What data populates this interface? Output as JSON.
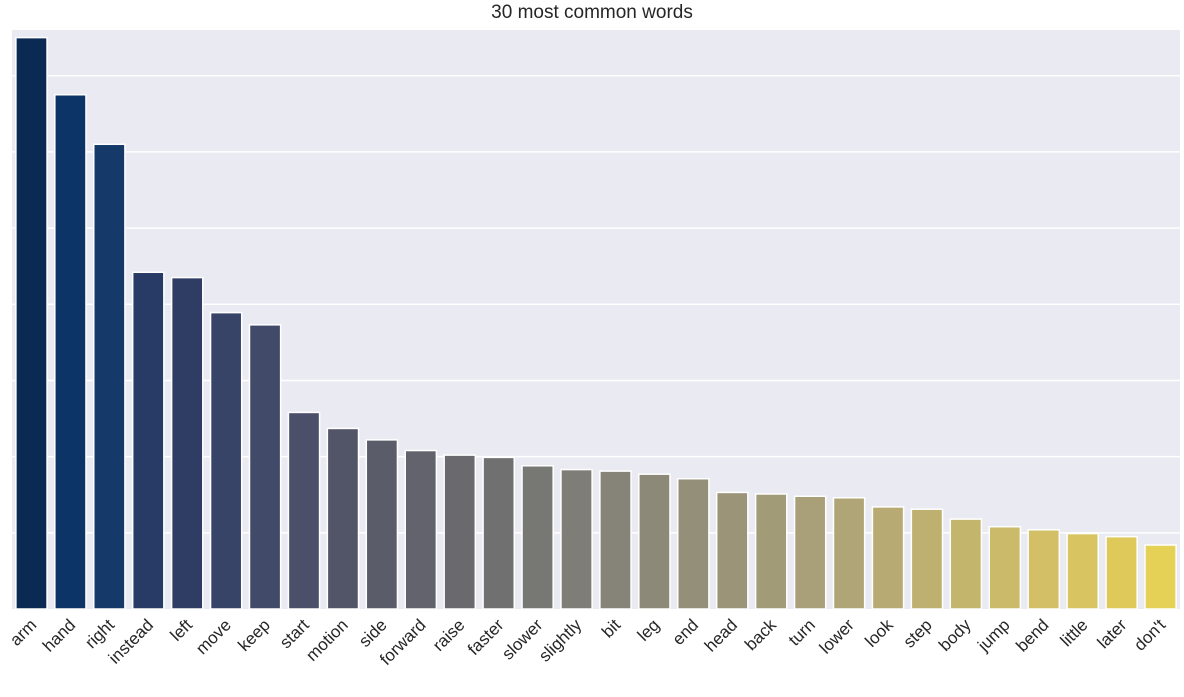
{
  "chart_data": {
    "type": "bar",
    "title": "30 most common words",
    "xlabel": "",
    "ylabel": "",
    "ylim": [
      0,
      75
    ],
    "grid": true,
    "categories": [
      "arm",
      "hand",
      "right",
      "instead",
      "left",
      "move",
      "keep",
      "start",
      "motion",
      "side",
      "forward",
      "raise",
      "faster",
      "slower",
      "slightly",
      "bit",
      "leg",
      "end",
      "head",
      "back",
      "turn",
      "lower",
      "look",
      "step",
      "body",
      "jump",
      "bend",
      "little",
      "later",
      "don't"
    ],
    "values": [
      75,
      67.5,
      61,
      44.2,
      43.5,
      38.9,
      37.3,
      25.8,
      23.7,
      22.2,
      20.8,
      20.2,
      19.9,
      18.8,
      18.3,
      18.1,
      17.7,
      17.1,
      15.3,
      15.1,
      14.8,
      14.6,
      13.4,
      13.1,
      11.8,
      10.8,
      10.4,
      9.9,
      9.5,
      8.4
    ],
    "colors": [
      "#0b2a53",
      "#0d3466",
      "#153a6a",
      "#283a66",
      "#2f3c64",
      "#384467",
      "#424a69",
      "#4b4f69",
      "#525568",
      "#5a5c6a",
      "#62636c",
      "#69696e",
      "#707070",
      "#777774",
      "#7f7d77",
      "#868379",
      "#8c8979",
      "#948f78",
      "#9b9479",
      "#a29b78",
      "#a99f79",
      "#b0a577",
      "#b7ab73",
      "#beb06f",
      "#c4b56d",
      "#cbba69",
      "#d2bf66",
      "#d8c561",
      "#dfc95b",
      "#e4d155"
    ],
    "grid_color": "#ffffff",
    "background_color": "#eaeaf2"
  }
}
